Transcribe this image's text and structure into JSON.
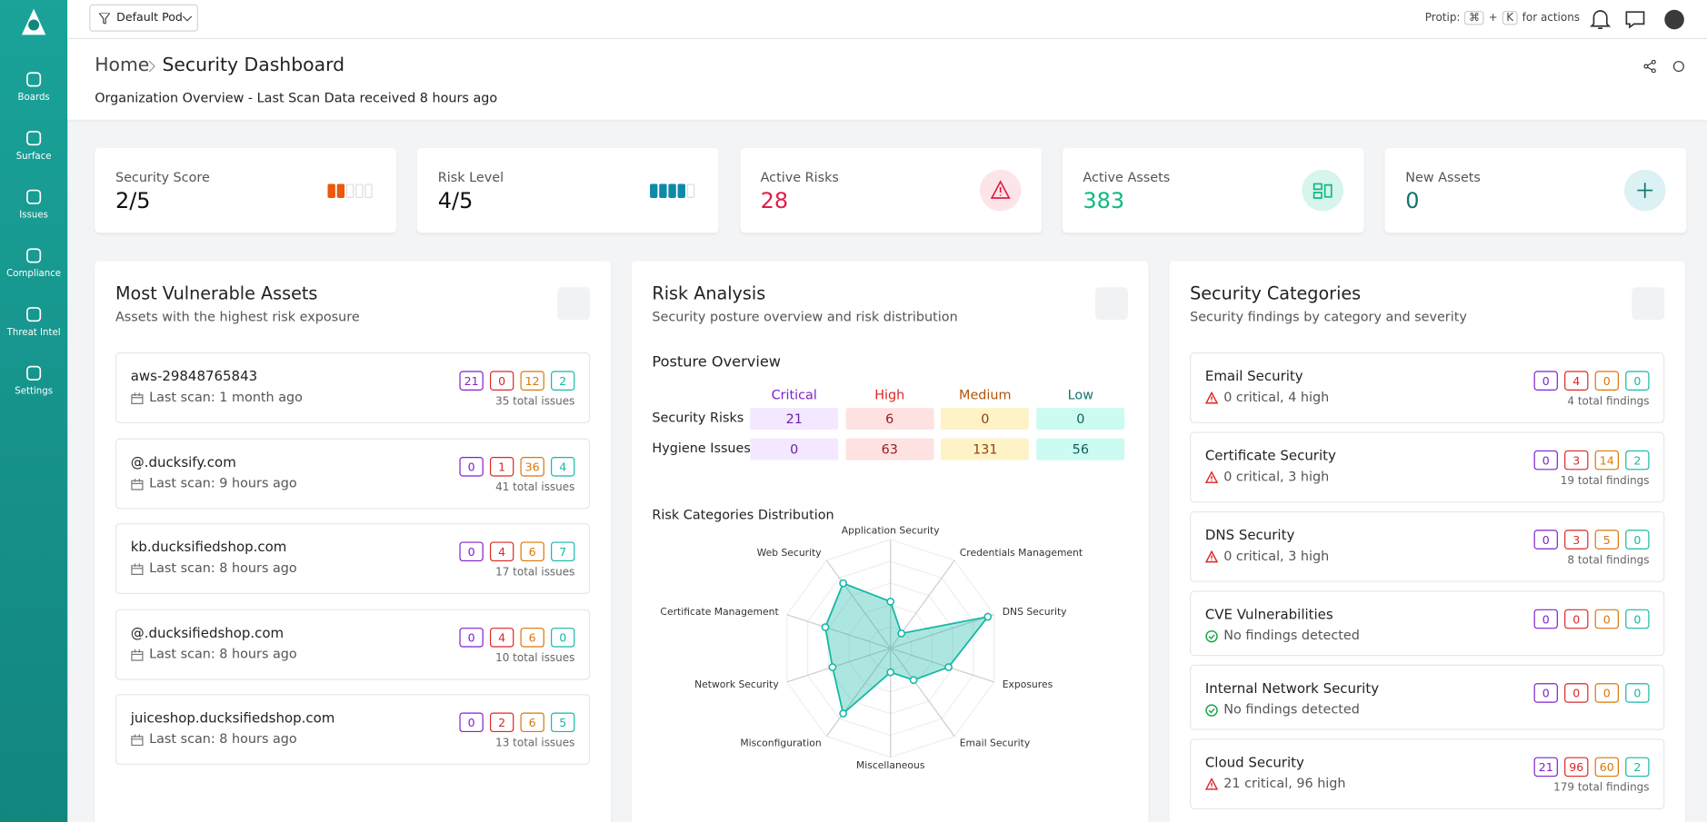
{
  "nav": {
    "pod": "Default Pod",
    "protip": "Protip:",
    "key1": "⌘",
    "plus": "+",
    "key2": "K",
    "for_actions": "for actions"
  },
  "sidebar": [
    "Boards",
    "Surface",
    "Issues",
    "Compliance",
    "Threat Intel",
    "Settings"
  ],
  "header": {
    "home": "Home",
    "page": "Security Dashboard",
    "subtitle": "Organization Overview - Last Scan Data received 8 hours ago"
  },
  "stats": [
    {
      "label": "Security Score",
      "value": "2/5"
    },
    {
      "label": "Risk Level",
      "value": "4/5"
    },
    {
      "label": "Active Risks",
      "value": 28
    },
    {
      "label": "Active Assets",
      "value": 383
    },
    {
      "label": "New Assets",
      "value": 0
    }
  ],
  "assets": {
    "title": "Most Vulnerable Assets",
    "subtitle": "Assets with the highest risk exposure",
    "items": [
      {
        "name": "aws-29848765843",
        "scan": "Last scan: 1 month ago",
        "counts": [
          21,
          0,
          12,
          2
        ],
        "total": "35 total issues"
      },
      {
        "name": "@.ducksify.com",
        "scan": "Last scan: 9 hours ago",
        "counts": [
          0,
          1,
          36,
          4
        ],
        "total": "41 total issues"
      },
      {
        "name": "kb.ducksifiedshop.com",
        "scan": "Last scan: 8 hours ago",
        "counts": [
          0,
          4,
          6,
          7
        ],
        "total": "17 total issues"
      },
      {
        "name": "@.ducksifiedshop.com",
        "scan": "Last scan: 8 hours ago",
        "counts": [
          0,
          4,
          6,
          0
        ],
        "total": "10 total issues"
      },
      {
        "name": "juiceshop.ducksifiedshop.com",
        "scan": "Last scan: 8 hours ago",
        "counts": [
          0,
          2,
          6,
          5
        ],
        "total": "13 total issues"
      }
    ]
  },
  "risk": {
    "title": "Risk Analysis",
    "subtitle": "Security posture overview and risk distribution",
    "posture_title": "Posture Overview",
    "columns": [
      "Critical",
      "High",
      "Medium",
      "Low"
    ],
    "rows": [
      {
        "label": "Security Risks",
        "values": [
          21,
          6,
          0,
          0
        ]
      },
      {
        "label": "Hygiene Issues",
        "values": [
          0,
          63,
          131,
          56
        ]
      }
    ],
    "dist_title": "Risk Categories Distribution",
    "chart": {
      "type": "radar",
      "categories": [
        "Application Security",
        "Credentials Management",
        "DNS Security",
        "Exposures",
        "Email Security",
        "Miscellaneous",
        "Misconfiguration",
        "Network Security",
        "Certificate Management",
        "Web Security"
      ],
      "values": [
        43,
        17,
        94,
        56,
        36,
        22,
        74,
        56,
        63,
        74
      ],
      "rlim": [
        0,
        100
      ],
      "color": "#14b8a6"
    }
  },
  "categories": {
    "title": "Security Categories",
    "subtitle": "Security findings by category and severity",
    "items": [
      {
        "name": "Email Security",
        "summary": "0 critical, 4 high",
        "counts": [
          0,
          4,
          0,
          0
        ],
        "total": "4 total findings"
      },
      {
        "name": "Certificate Security",
        "summary": "0 critical, 3 high",
        "counts": [
          0,
          3,
          14,
          2
        ],
        "total": "19 total findings"
      },
      {
        "name": "DNS Security",
        "summary": "0 critical, 3 high",
        "counts": [
          0,
          3,
          5,
          0
        ],
        "total": "8 total findings"
      },
      {
        "name": "CVE Vulnerabilities",
        "summary": "No findings detected",
        "counts": [
          0,
          0,
          0,
          0
        ]
      },
      {
        "name": "Internal Network Security",
        "summary": "No findings detected",
        "counts": [
          0,
          0,
          0,
          0
        ]
      },
      {
        "name": "Cloud Security",
        "summary": "21 critical, 96 high",
        "counts": [
          21,
          96,
          60,
          2
        ],
        "total": "179 total findings"
      }
    ]
  }
}
